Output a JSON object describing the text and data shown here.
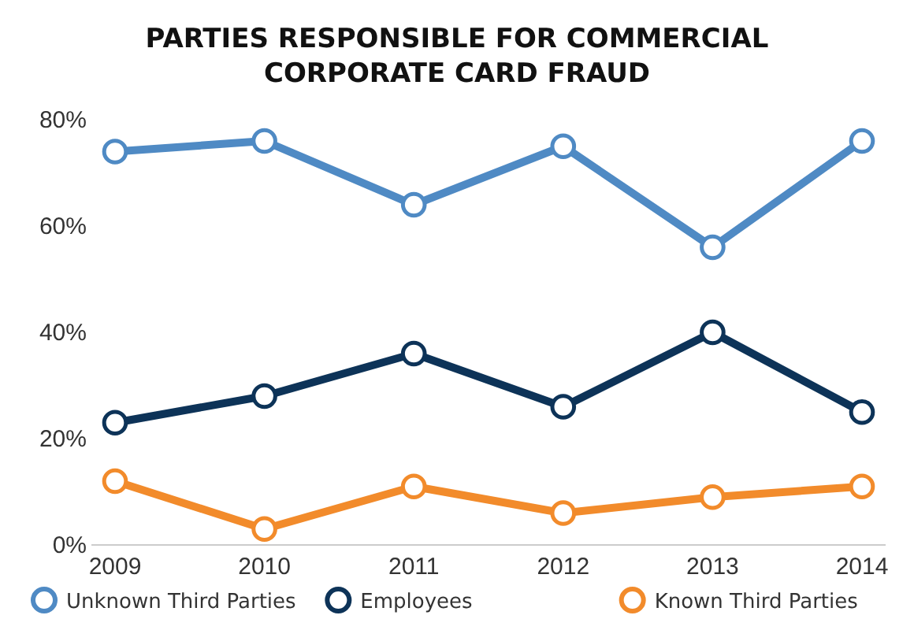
{
  "chart_data": {
    "type": "line",
    "title": "PARTIES RESPONSIBLE FOR COMMERCIAL CORPORATE CARD FRAUD",
    "categories": [
      "2009",
      "2010",
      "2011",
      "2012",
      "2013",
      "2014"
    ],
    "series": [
      {
        "name": "Unknown Third Parties",
        "color": "#4f8ac4",
        "values": [
          74,
          76,
          64,
          75,
          56,
          76
        ]
      },
      {
        "name": "Employees",
        "color": "#0d3358",
        "values": [
          23,
          28,
          36,
          26,
          40,
          25
        ]
      },
      {
        "name": "Known Third Parties",
        "color": "#f28b2b",
        "values": [
          12,
          3,
          11,
          6,
          9,
          11
        ]
      }
    ],
    "ylim": [
      0,
      80
    ],
    "yticks": [
      {
        "value": 0,
        "label": "0%"
      },
      {
        "value": 20,
        "label": "20%"
      },
      {
        "value": 40,
        "label": "40%"
      },
      {
        "value": 60,
        "label": "60%"
      },
      {
        "value": 80,
        "label": "80%"
      }
    ],
    "legend": "bottom",
    "marker": "circle",
    "line_style": "solid"
  }
}
